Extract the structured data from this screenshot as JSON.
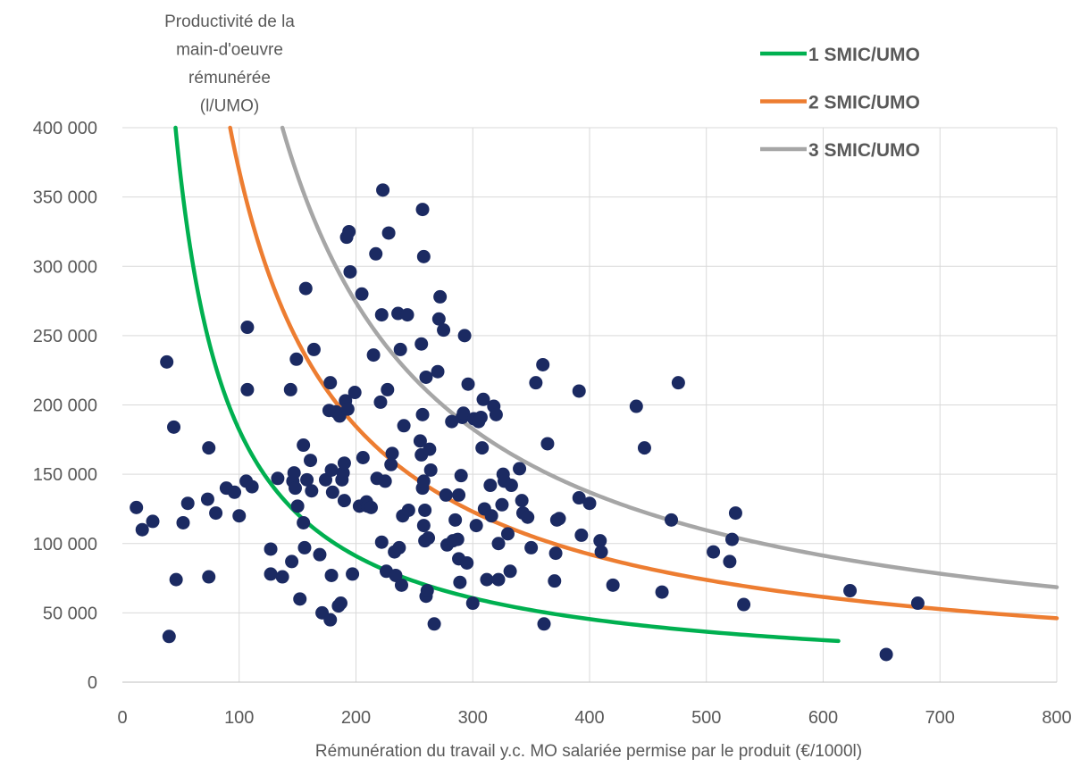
{
  "chart_data": {
    "type": "scatter",
    "xlabel": "Rémunération du travail y.c. MO salariée permise par le produit (€/1000l)",
    "ylabel_lines": [
      "Productivité de la",
      "main-d'oeuvre",
      "rémunérée",
      "(l/UMO)"
    ],
    "xlim": [
      0,
      800
    ],
    "ylim": [
      0,
      400000
    ],
    "grid": true,
    "legend_position": "top-right",
    "x_ticks": [
      0,
      100,
      200,
      300,
      400,
      500,
      600,
      700,
      800
    ],
    "x_tick_labels": [
      "0",
      "100",
      "200",
      "300",
      "400",
      "500",
      "600",
      "700",
      "800"
    ],
    "y_ticks": [
      0,
      50000,
      100000,
      150000,
      200000,
      250000,
      300000,
      350000,
      400000
    ],
    "y_tick_labels": [
      "0",
      "50 000",
      "100 000",
      "150 000",
      "200 000",
      "250 000",
      "300 000",
      "350 000",
      "400 000"
    ],
    "curves": [
      {
        "name": "1 SMIC/UMO",
        "color": "#00b050",
        "k": 18200000,
        "x_range": [
          45.5,
          613
        ]
      },
      {
        "name": "2 SMIC/UMO",
        "color": "#ed7d31",
        "k": 36900000,
        "x_range": [
          92,
          800
        ]
      },
      {
        "name": "3 SMIC/UMO",
        "color": "#a6a6a6",
        "k": 54800000,
        "x_range": [
          137,
          800
        ]
      }
    ],
    "points_color": "#1b2a62",
    "points": [
      [
        12,
        126000
      ],
      [
        17,
        110000
      ],
      [
        26,
        116000
      ],
      [
        38,
        231000
      ],
      [
        40,
        33000
      ],
      [
        44,
        184000
      ],
      [
        46,
        74000
      ],
      [
        52,
        115000
      ],
      [
        56,
        129000
      ],
      [
        73,
        132000
      ],
      [
        74,
        76000
      ],
      [
        74,
        169000
      ],
      [
        80,
        122000
      ],
      [
        89,
        140000
      ],
      [
        96,
        137000
      ],
      [
        100,
        120000
      ],
      [
        106,
        145000
      ],
      [
        107,
        256000
      ],
      [
        107,
        211000
      ],
      [
        111,
        141000
      ],
      [
        127,
        96000
      ],
      [
        127,
        78000
      ],
      [
        133,
        147000
      ],
      [
        137,
        76000
      ],
      [
        144,
        211000
      ],
      [
        145,
        87000
      ],
      [
        146,
        145000
      ],
      [
        147,
        151000
      ],
      [
        148,
        140000
      ],
      [
        149,
        233000
      ],
      [
        150,
        127000
      ],
      [
        152,
        60000
      ],
      [
        155,
        115000
      ],
      [
        155,
        171000
      ],
      [
        156,
        97000
      ],
      [
        157,
        284000
      ],
      [
        158,
        146000
      ],
      [
        161,
        160000
      ],
      [
        162,
        138000
      ],
      [
        164,
        240000
      ],
      [
        169,
        92000
      ],
      [
        171,
        50000
      ],
      [
        174,
        146000
      ],
      [
        177,
        196000
      ],
      [
        178,
        216000
      ],
      [
        178,
        45000
      ],
      [
        179,
        153000
      ],
      [
        179,
        77000
      ],
      [
        180,
        137000
      ],
      [
        183,
        195000
      ],
      [
        185,
        55000
      ],
      [
        186,
        192000
      ],
      [
        187,
        57000
      ],
      [
        188,
        146000
      ],
      [
        189,
        151000
      ],
      [
        190,
        158000
      ],
      [
        190,
        131000
      ],
      [
        191,
        203000
      ],
      [
        192,
        321000
      ],
      [
        193,
        197000
      ],
      [
        194,
        325000
      ],
      [
        195,
        296000
      ],
      [
        197,
        78000
      ],
      [
        199,
        209000
      ],
      [
        203,
        127000
      ],
      [
        205,
        280000
      ],
      [
        206,
        162000
      ],
      [
        209,
        130000
      ],
      [
        210,
        127000
      ],
      [
        213,
        126000
      ],
      [
        215,
        236000
      ],
      [
        217,
        309000
      ],
      [
        218,
        147000
      ],
      [
        221,
        202000
      ],
      [
        222,
        101000
      ],
      [
        222,
        265000
      ],
      [
        223,
        355000
      ],
      [
        225,
        145000
      ],
      [
        226,
        80000
      ],
      [
        227,
        211000
      ],
      [
        228,
        324000
      ],
      [
        230,
        157000
      ],
      [
        231,
        165000
      ],
      [
        233,
        94000
      ],
      [
        234,
        77000
      ],
      [
        236,
        266000
      ],
      [
        237,
        97000
      ],
      [
        238,
        240000
      ],
      [
        239,
        70000
      ],
      [
        240,
        120000
      ],
      [
        241,
        185000
      ],
      [
        244,
        265000
      ],
      [
        245,
        124000
      ],
      [
        255,
        174000
      ],
      [
        256,
        164000
      ],
      [
        256,
        244000
      ],
      [
        257,
        140000
      ],
      [
        257,
        341000
      ],
      [
        257,
        193000
      ],
      [
        258,
        307000
      ],
      [
        258,
        145000
      ],
      [
        258,
        113000
      ],
      [
        259,
        102000
      ],
      [
        259,
        124000
      ],
      [
        260,
        220000
      ],
      [
        260,
        62000
      ],
      [
        261,
        66000
      ],
      [
        262,
        104000
      ],
      [
        263,
        168000
      ],
      [
        264,
        153000
      ],
      [
        267,
        42000
      ],
      [
        270,
        224000
      ],
      [
        271,
        262000
      ],
      [
        272,
        278000
      ],
      [
        275,
        254000
      ],
      [
        277,
        135000
      ],
      [
        278,
        99000
      ],
      [
        282,
        188000
      ],
      [
        283,
        102000
      ],
      [
        285,
        117000
      ],
      [
        287,
        103000
      ],
      [
        288,
        89000
      ],
      [
        288,
        135000
      ],
      [
        289,
        72000
      ],
      [
        290,
        149000
      ],
      [
        291,
        191000
      ],
      [
        292,
        194000
      ],
      [
        293,
        250000
      ],
      [
        295,
        86000
      ],
      [
        296,
        215000
      ],
      [
        300,
        57000
      ],
      [
        301,
        190000
      ],
      [
        303,
        113000
      ],
      [
        305,
        188000
      ],
      [
        307,
        191000
      ],
      [
        308,
        169000
      ],
      [
        309,
        204000
      ],
      [
        310,
        125000
      ],
      [
        312,
        74000
      ],
      [
        315,
        142000
      ],
      [
        316,
        120000
      ],
      [
        318,
        199000
      ],
      [
        320,
        193000
      ],
      [
        322,
        74000
      ],
      [
        322,
        100000
      ],
      [
        325,
        128000
      ],
      [
        326,
        150000
      ],
      [
        327,
        145000
      ],
      [
        330,
        107000
      ],
      [
        332,
        80000
      ],
      [
        333,
        142000
      ],
      [
        340,
        154000
      ],
      [
        342,
        131000
      ],
      [
        343,
        122000
      ],
      [
        347,
        119000
      ],
      [
        350,
        97000
      ],
      [
        354,
        216000
      ],
      [
        360,
        229000
      ],
      [
        361,
        42000
      ],
      [
        364,
        172000
      ],
      [
        370,
        73000
      ],
      [
        371,
        93000
      ],
      [
        372,
        117000
      ],
      [
        374,
        118000
      ],
      [
        391,
        133000
      ],
      [
        391,
        210000
      ],
      [
        393,
        106000
      ],
      [
        400,
        129000
      ],
      [
        409,
        102000
      ],
      [
        410,
        94000
      ],
      [
        420,
        70000
      ],
      [
        440,
        199000
      ],
      [
        447,
        169000
      ],
      [
        462,
        65000
      ],
      [
        470,
        117000
      ],
      [
        476,
        216000
      ],
      [
        506,
        94000
      ],
      [
        520,
        87000
      ],
      [
        522,
        103000
      ],
      [
        525,
        122000
      ],
      [
        532,
        56000
      ],
      [
        623,
        66000
      ],
      [
        654,
        20000
      ],
      [
        681,
        57000
      ]
    ]
  }
}
